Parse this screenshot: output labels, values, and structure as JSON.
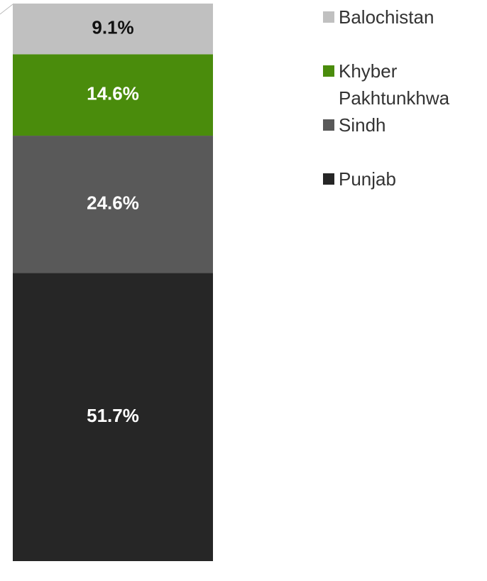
{
  "chart_data": {
    "type": "stacked_bar",
    "categories": [
      null
    ],
    "series": [
      {
        "name": "Punjab",
        "color": "#262626",
        "values": [
          51.7
        ],
        "value_labels": [
          "51.7%"
        ]
      },
      {
        "name": "Sindh",
        "color": "#595959",
        "values": [
          24.6
        ],
        "value_labels": [
          "24.6%"
        ]
      },
      {
        "name": "Khyber Pakhtunkhwa",
        "color": "#4a8c0c",
        "values": [
          14.6
        ],
        "value_labels": [
          "14.6%"
        ]
      },
      {
        "name": "Balochistan",
        "color": "#c0c0c0",
        "values": [
          9.1
        ],
        "value_labels": [
          "9.1%"
        ]
      }
    ],
    "ylim": [
      0,
      100
    ]
  }
}
